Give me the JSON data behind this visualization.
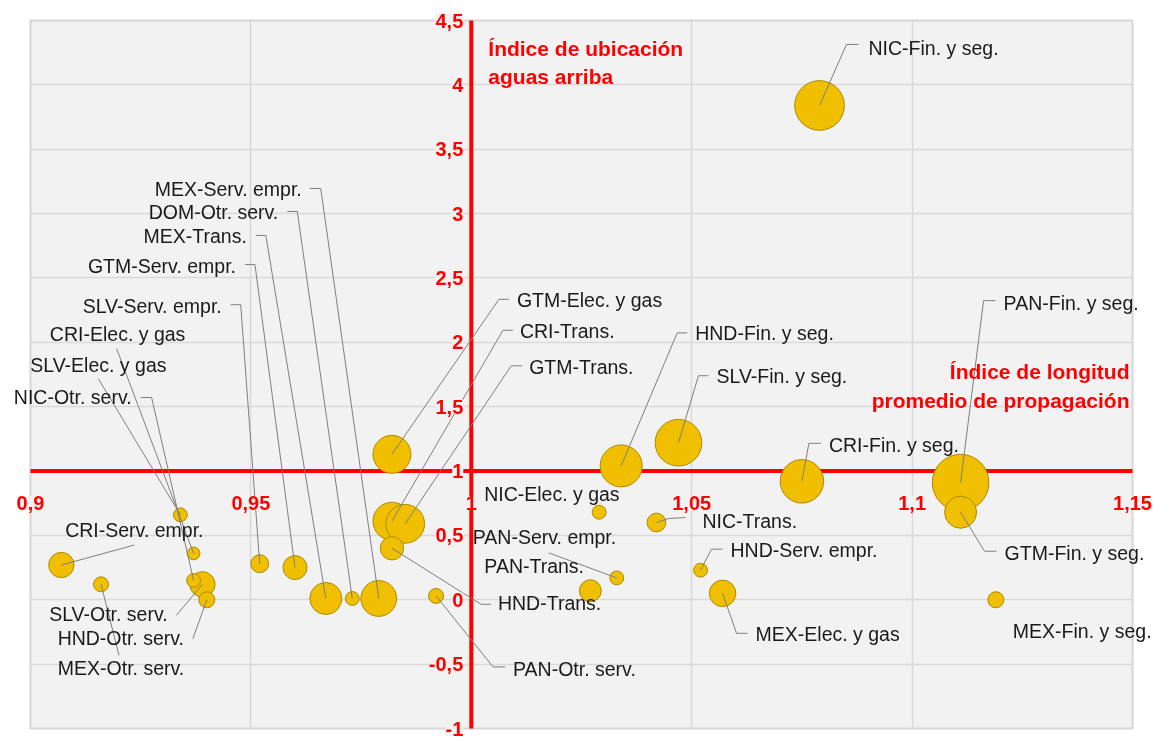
{
  "chart_data": {
    "type": "bubble",
    "xlabel": "Índice de longitud promedio de propagación",
    "ylabel": "Índice de ubicación aguas arriba",
    "x": [
      0.979,
      0.973,
      0.967,
      0.96,
      0.952,
      0.937,
      0.934,
      0.939,
      0.937,
      0.907,
      0.94,
      0.916,
      0.982,
      0.982,
      0.985,
      0.982,
      0.992,
      1.029,
      1.033,
      1.027,
      1.042,
      1.034,
      1.047,
      1.052,
      1.057,
      1.079,
      1.075,
      1.111,
      1.111,
      1.119
    ],
    "values": [
      0.01,
      0.01,
      0.01,
      0.25,
      0.28,
      0.36,
      0.66,
      0.12,
      0.15,
      0.27,
      0.0,
      0.12,
      1.13,
      0.61,
      0.59,
      0.4,
      0.03,
      0.68,
      0.17,
      0.07,
      0.6,
      1.04,
      1.22,
      0.23,
      0.05,
      3.84,
      0.92,
      0.91,
      0.68,
      0.0
    ],
    "sizes": [
      0.4,
      0.06,
      0.32,
      0.18,
      0.1,
      0.05,
      0.06,
      0.2,
      0.06,
      0.2,
      0.08,
      0.07,
      0.45,
      0.45,
      0.47,
      0.17,
      0.07,
      0.06,
      0.06,
      0.15,
      0.11,
      0.55,
      0.68,
      0.06,
      0.22,
      0.77,
      0.59,
      1,
      0.32,
      0.08
    ],
    "color": "#f0c000",
    "xlim": [
      0.9,
      1.15
    ],
    "ylim": [
      -1,
      4.5
    ],
    "xticks": [
      {
        "value": 0.9,
        "label": "0,9"
      },
      {
        "value": 0.95,
        "label": "0,95"
      },
      1,
      {
        "value": 1.05,
        "label": "1,05"
      },
      {
        "value": 1.1,
        "label": "1,1"
      },
      {
        "value": 1.15,
        "label": "1,15"
      }
    ],
    "yticks": [
      -1,
      {
        "value": -0.5,
        "label": "-0,5"
      },
      0,
      {
        "value": 0.5,
        "label": "0,5"
      },
      1,
      {
        "value": 1.5,
        "label": "1,5"
      },
      2,
      {
        "value": 2.5,
        "label": "2,5"
      },
      3,
      {
        "value": 3.5,
        "label": "3,5"
      },
      4,
      {
        "value": 4.5,
        "label": "4,5"
      }
    ],
    "grid": true,
    "annotations": [
      {
        "text": "MEX-Serv. empr.",
        "x": 0.979,
        "y": 0.01
      },
      {
        "text": "DOM-Otr. serv.",
        "x": 0.973,
        "y": 0.01
      },
      {
        "text": "MEX-Trans.",
        "x": 0.967,
        "y": 0.01
      },
      {
        "text": "GTM-Serv. empr.",
        "x": 0.96,
        "y": 0.25
      },
      {
        "text": "SLV-Serv. empr.",
        "x": 0.952,
        "y": 0.28
      },
      {
        "text": "CRI-Elec. y gas",
        "x": 0.937,
        "y": 0.36
      },
      {
        "text": "SLV-Elec. y gas",
        "x": 0.934,
        "y": 0.66
      },
      {
        "text": "SLV-Otr. serv.",
        "x": 0.939,
        "y": 0.12
      },
      {
        "text": "NIC-Otr. serv.",
        "x": 0.937,
        "y": 0.15
      },
      {
        "text": "CRI-Serv. empr.",
        "x": 0.907,
        "y": 0.27
      },
      {
        "text": "HND-Otr. serv.",
        "x": 0.94,
        "y": 0.0
      },
      {
        "text": "MEX-Otr. serv.",
        "x": 0.916,
        "y": 0.12
      },
      {
        "text": "GTM-Elec. y gas",
        "x": 0.982,
        "y": 1.13
      },
      {
        "text": "CRI-Trans.",
        "x": 0.982,
        "y": 0.61
      },
      {
        "text": "GTM-Trans.",
        "x": 0.985,
        "y": 0.59
      },
      {
        "text": "HND-Trans.",
        "x": 0.982,
        "y": 0.4
      },
      {
        "text": "PAN-Otr. serv.",
        "x": 0.992,
        "y": 0.03
      },
      {
        "text": "NIC-Elec. y gas",
        "x": 1.029,
        "y": 0.68
      },
      {
        "text": "PAN-Serv. empr.",
        "x": 1.033,
        "y": 0.17
      },
      {
        "text": "PAN-Trans.",
        "x": 1.027,
        "y": 0.07
      },
      {
        "text": "NIC-Trans.",
        "x": 1.042,
        "y": 0.6
      },
      {
        "text": "HND-Fin. y seg.",
        "x": 1.034,
        "y": 1.04
      },
      {
        "text": "SLV-Fin. y seg.",
        "x": 1.047,
        "y": 1.22
      },
      {
        "text": "HND-Serv. empr.",
        "x": 1.052,
        "y": 0.23
      },
      {
        "text": "MEX-Elec. y gas",
        "x": 1.057,
        "y": 0.05
      },
      {
        "text": "NIC-Fin. y seg.",
        "x": 1.079,
        "y": 3.84
      },
      {
        "text": "CRI-Fin. y seg.",
        "x": 1.075,
        "y": 0.92
      },
      {
        "text": "PAN-Fin. y seg.",
        "x": 1.111,
        "y": 0.91
      },
      {
        "text": "GTM-Fin. y seg.",
        "x": 1.111,
        "y": 0.68
      },
      {
        "text": "MEX-Fin. y seg.",
        "x": 1.119,
        "y": 0.0
      }
    ]
  }
}
